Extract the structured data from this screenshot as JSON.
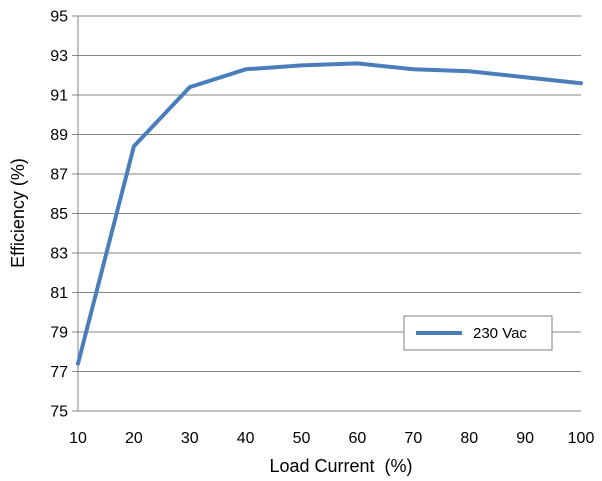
{
  "chart_data": {
    "type": "line",
    "title": "",
    "xlabel": "Load Current  (%)",
    "ylabel": "Efficiency (%)",
    "x": [
      10,
      20,
      30,
      40,
      50,
      60,
      70,
      80,
      90,
      100
    ],
    "xlim": [
      10,
      100
    ],
    "ylim": [
      75,
      95
    ],
    "xticks": [
      "10",
      "20",
      "30",
      "40",
      "50",
      "60",
      "70",
      "80",
      "90",
      "100"
    ],
    "yticks": [
      "75",
      "77",
      "79",
      "81",
      "83",
      "85",
      "87",
      "89",
      "91",
      "93",
      "95"
    ],
    "grid": "horizontal",
    "legend_position": "bottom-right",
    "series": [
      {
        "name": "230 Vac",
        "color": "#4a7ebb",
        "values": [
          77.4,
          88.4,
          91.4,
          92.3,
          92.5,
          92.6,
          92.3,
          92.2,
          91.9,
          91.6
        ]
      }
    ]
  }
}
